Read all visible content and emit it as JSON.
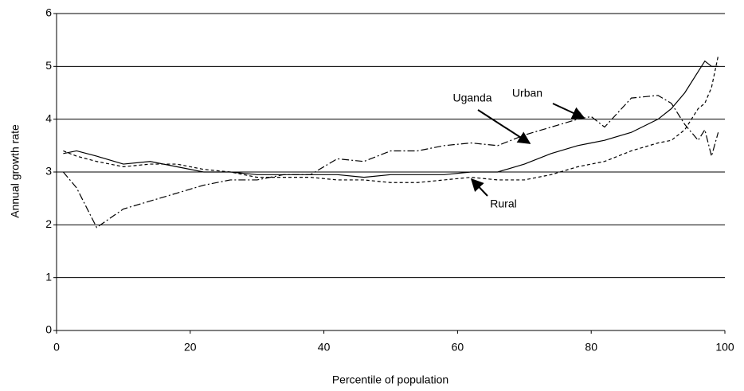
{
  "chart_data": {
    "type": "line",
    "y_label": "Annual growth rate",
    "x_label": "Percentile of population",
    "xlim": [
      0,
      100
    ],
    "xticks": [
      0,
      20,
      40,
      60,
      80,
      100
    ],
    "ylim": [
      0,
      6
    ],
    "yticks": [
      0,
      1,
      2,
      3,
      4,
      5,
      6
    ],
    "grid": true,
    "x": [
      1,
      3,
      6,
      10,
      14,
      18,
      22,
      26,
      30,
      34,
      38,
      42,
      46,
      50,
      54,
      58,
      62,
      66,
      70,
      74,
      78,
      80,
      82,
      86,
      90,
      92,
      94,
      96,
      97,
      98,
      99
    ],
    "series": [
      {
        "name": "Uganda",
        "color": "#000000",
        "linestyle": "solid",
        "values": [
          3.35,
          3.4,
          3.3,
          3.15,
          3.2,
          3.1,
          3.0,
          3.0,
          2.95,
          2.95,
          2.95,
          2.95,
          2.9,
          2.95,
          2.95,
          2.95,
          3.0,
          3.0,
          3.15,
          3.35,
          3.5,
          3.55,
          3.6,
          3.75,
          4.0,
          4.2,
          4.5,
          4.9,
          5.1,
          5.0,
          5.0
        ]
      },
      {
        "name": "Urban",
        "color": "#000000",
        "linestyle": "dashdot",
        "values": [
          3.0,
          2.7,
          1.95,
          2.3,
          2.45,
          2.6,
          2.75,
          2.85,
          2.85,
          2.95,
          2.95,
          3.25,
          3.2,
          3.4,
          3.4,
          3.5,
          3.55,
          3.5,
          3.7,
          3.85,
          4.0,
          4.05,
          3.85,
          4.4,
          4.45,
          4.3,
          3.9,
          3.6,
          3.8,
          3.3,
          3.75
        ]
      },
      {
        "name": "Rural",
        "color": "#000000",
        "linestyle": "dashed",
        "values": [
          3.4,
          3.3,
          3.2,
          3.1,
          3.15,
          3.15,
          3.05,
          3.0,
          2.9,
          2.9,
          2.9,
          2.85,
          2.85,
          2.8,
          2.8,
          2.85,
          2.9,
          2.85,
          2.85,
          2.95,
          3.1,
          3.15,
          3.2,
          3.4,
          3.55,
          3.6,
          3.8,
          4.2,
          4.3,
          4.6,
          5.2
        ]
      }
    ]
  }
}
